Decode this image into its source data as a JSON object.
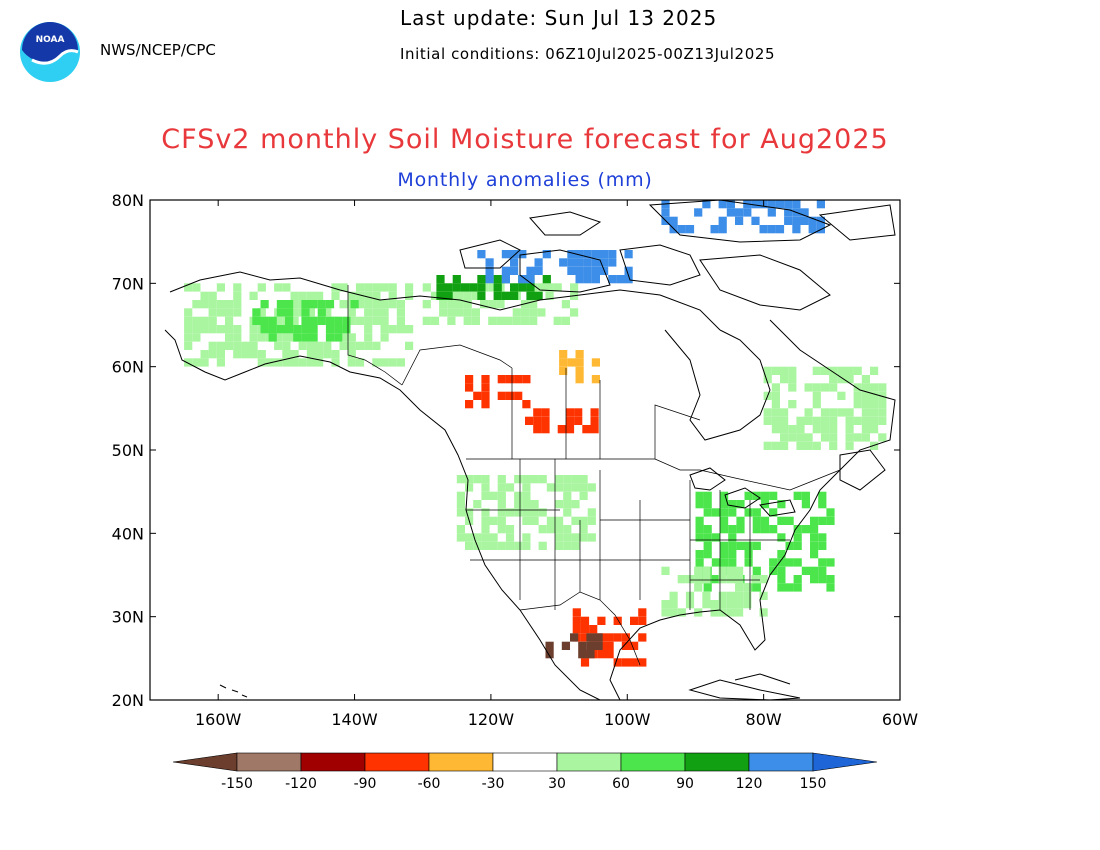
{
  "header": {
    "agency": "NWS/NCEP/CPC",
    "last_update": "Last update: Sun Jul 13 2025",
    "initial_conditions": "Initial conditions: 06Z10Jul2025-00Z13Jul2025",
    "logo_text": "NOAA"
  },
  "map": {
    "title": "CFSv2 monthly Soil Moisture forecast for Aug2025",
    "subtitle": "Monthly anomalies (mm)",
    "lon_range": [
      -170,
      -60
    ],
    "lat_range": [
      20,
      80
    ],
    "lat_ticks": [
      {
        "value": 80,
        "label": "80N"
      },
      {
        "value": 70,
        "label": "70N"
      },
      {
        "value": 60,
        "label": "60N"
      },
      {
        "value": 50,
        "label": "50N"
      },
      {
        "value": 40,
        "label": "40N"
      },
      {
        "value": 30,
        "label": "30N"
      },
      {
        "value": 20,
        "label": "20N"
      }
    ],
    "lon_ticks": [
      {
        "value": -160,
        "label": "160W"
      },
      {
        "value": -140,
        "label": "140W"
      },
      {
        "value": -120,
        "label": "120W"
      },
      {
        "value": -100,
        "label": "100W"
      },
      {
        "value": -80,
        "label": "80W"
      },
      {
        "value": -60,
        "label": "60W"
      }
    ]
  },
  "colorbar": {
    "labels": [
      "-150",
      "-120",
      "-90",
      "-60",
      "-30",
      "30",
      "60",
      "90",
      "120",
      "150"
    ],
    "colors": [
      "#6b3e2e",
      "#a07868",
      "#a00000",
      "#ff3300",
      "#ffb833",
      "#ffffff",
      "#aaf5a0",
      "#4ce64c",
      "#11a011",
      "#3c8ee8",
      "#1e66d8"
    ]
  },
  "anomaly_regions": [
    {
      "lon": [
        -165,
        -132
      ],
      "lat": [
        60,
        70
      ],
      "level": "light-green"
    },
    {
      "lon": [
        -155,
        -140
      ],
      "lat": [
        63,
        68
      ],
      "level": "green"
    },
    {
      "lon": [
        -130,
        -108
      ],
      "lat": [
        65,
        70
      ],
      "level": "light-green"
    },
    {
      "lon": [
        -128,
        -112
      ],
      "lat": [
        68,
        71
      ],
      "level": "dark-green"
    },
    {
      "lon": [
        -122,
        -100
      ],
      "lat": [
        70,
        74
      ],
      "level": "blue"
    },
    {
      "lon": [
        -95,
        -72
      ],
      "lat": [
        76,
        80
      ],
      "level": "blue"
    },
    {
      "lon": [
        -110,
        -105
      ],
      "lat": [
        58,
        62
      ],
      "level": "orange"
    },
    {
      "lon": [
        -125,
        -115
      ],
      "lat": [
        55,
        59
      ],
      "level": "red"
    },
    {
      "lon": [
        -115,
        -105
      ],
      "lat": [
        52,
        55
      ],
      "level": "red"
    },
    {
      "lon": [
        -90,
        -70
      ],
      "lat": [
        33,
        45
      ],
      "level": "green"
    },
    {
      "lon": [
        -95,
        -80
      ],
      "lat": [
        30,
        36
      ],
      "level": "light-green"
    },
    {
      "lon": [
        -108,
        -98
      ],
      "lat": [
        24,
        31
      ],
      "level": "red"
    },
    {
      "lon": [
        -112,
        -104
      ],
      "lat": [
        25,
        29
      ],
      "level": "brown"
    },
    {
      "lon": [
        -80,
        -62
      ],
      "lat": [
        50,
        60
      ],
      "level": "light-green"
    },
    {
      "lon": [
        -125,
        -105
      ],
      "lat": [
        38,
        47
      ],
      "level": "light-green"
    }
  ]
}
